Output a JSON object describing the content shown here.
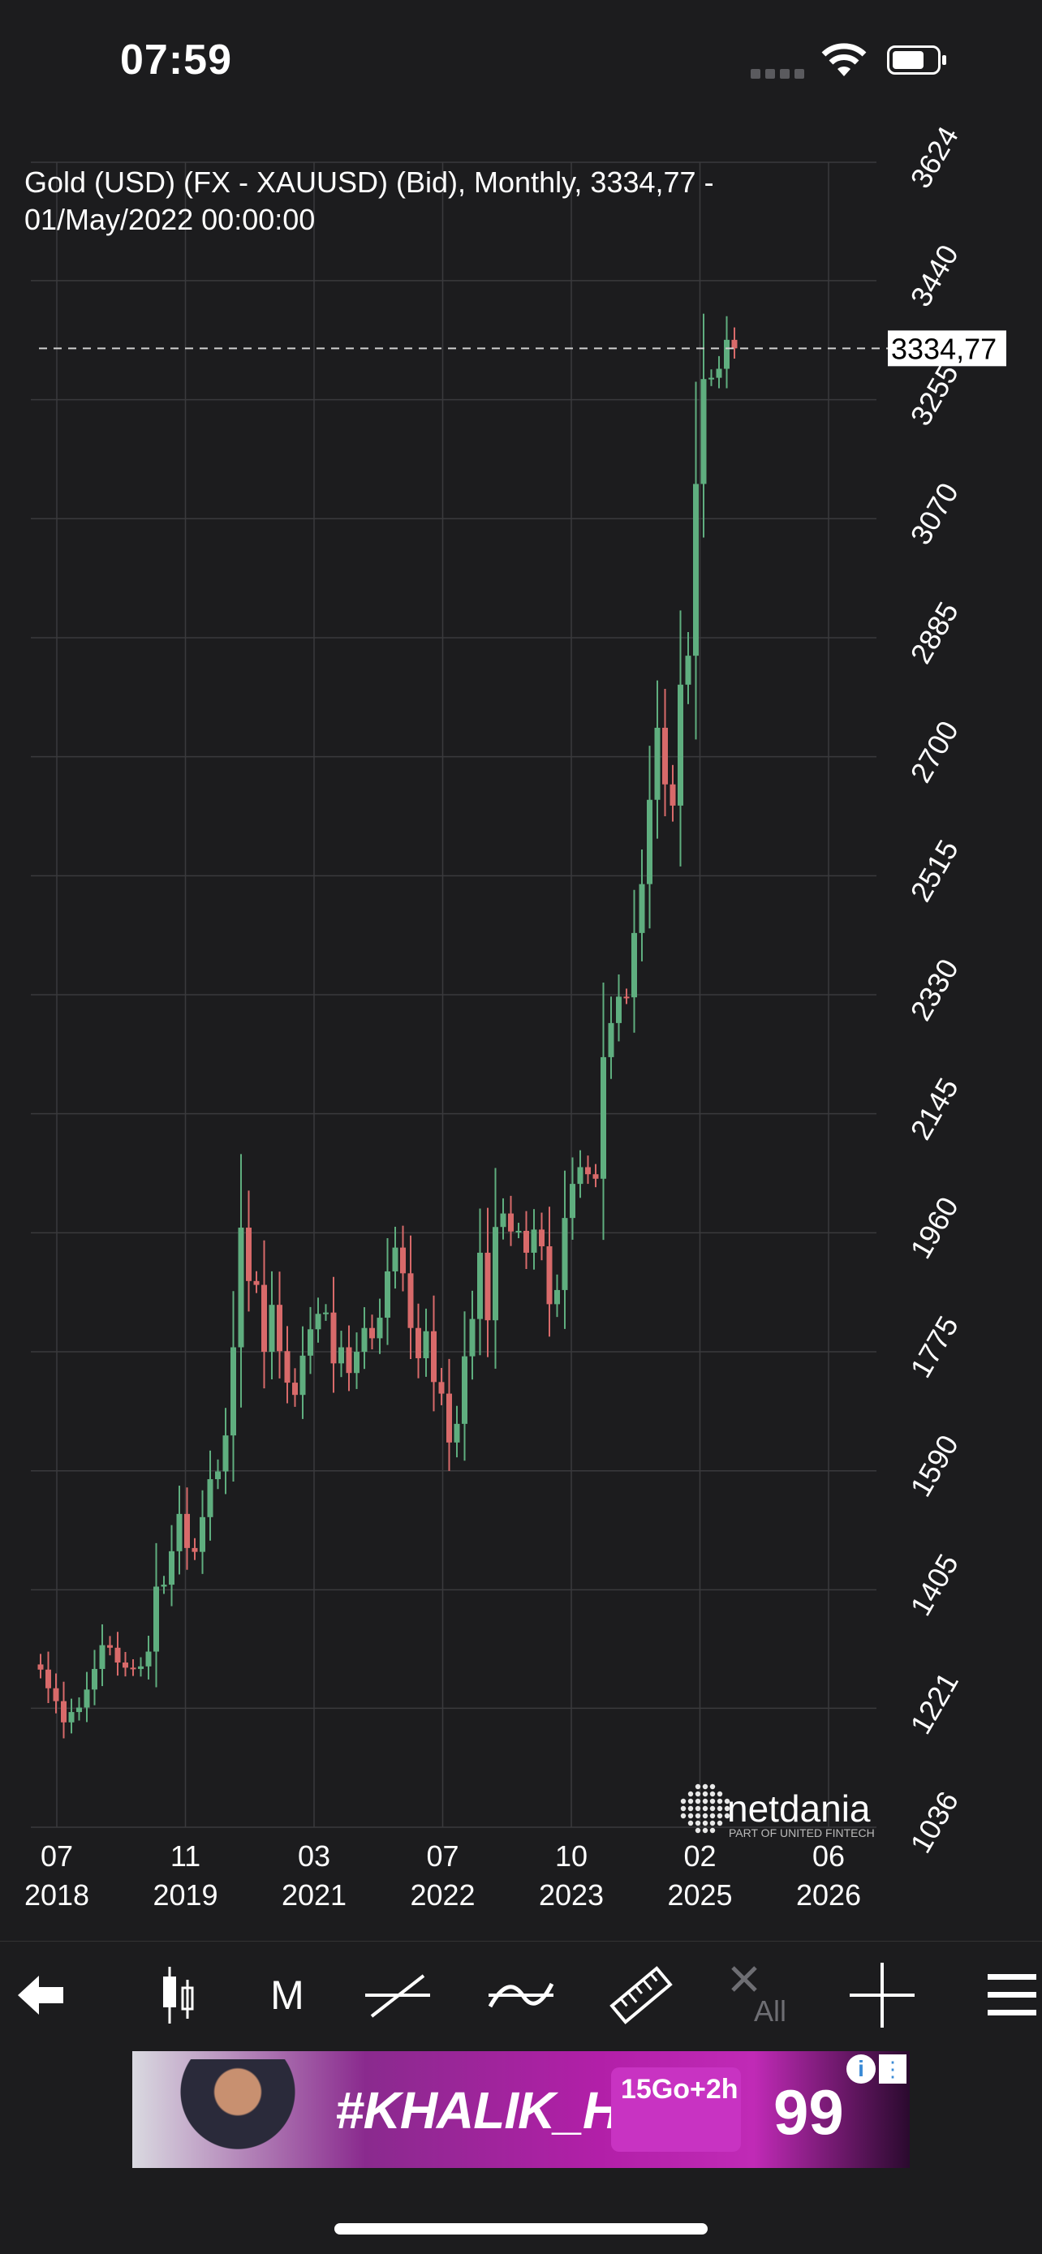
{
  "status_bar": {
    "time": "07:59"
  },
  "chart_data": {
    "type": "candlestick",
    "title": "Gold (USD) (FX - XAUUSD) (Bid), Monthly, 3334,77 - 01/May/2022 00:00:00",
    "ylim": [
      1036,
      3624
    ],
    "y_ticks": [
      "3624",
      "3440",
      "3255",
      "3070",
      "2885",
      "2700",
      "2515",
      "2330",
      "2145",
      "1960",
      "1775",
      "1590",
      "1405",
      "1221",
      "1036"
    ],
    "x_ticks": [
      {
        "month": "07",
        "year": "2018"
      },
      {
        "month": "11",
        "year": "2019"
      },
      {
        "month": "03",
        "year": "2021"
      },
      {
        "month": "07",
        "year": "2022"
      },
      {
        "month": "10",
        "year": "2023"
      },
      {
        "month": "02",
        "year": "2025"
      },
      {
        "month": "06",
        "year": "2026"
      }
    ],
    "current_price": 3334.77,
    "current_price_label": "3334,77",
    "up_color": "#5fae7f",
    "down_color": "#d86a6a",
    "closes": [
      1281,
      1252,
      1232,
      1199,
      1215,
      1222,
      1250,
      1282,
      1319,
      1315,
      1292,
      1284,
      1282,
      1286,
      1309,
      1410,
      1413,
      1465,
      1523,
      1470,
      1464,
      1518,
      1577,
      1589,
      1645,
      1782,
      1968,
      1885,
      1879,
      1775,
      1848,
      1776,
      1727,
      1708,
      1769,
      1810,
      1834,
      1836,
      1757,
      1782,
      1742,
      1775,
      1812,
      1796,
      1828,
      1900,
      1937,
      1897,
      1812,
      1765,
      1807,
      1728,
      1710,
      1634,
      1663,
      1768,
      1826,
      1929,
      1824,
      1969,
      1990,
      1962,
      1963,
      1929,
      1965,
      1939,
      1849,
      1871,
      1983,
      2036,
      2062,
      2051,
      2044,
      2233,
      2286,
      2327,
      2326,
      2426,
      2502,
      2633,
      2745,
      2657,
      2624,
      2812,
      2857,
      3124,
      3287,
      3289,
      3303,
      3348,
      3334.77
    ],
    "logo_text": "netdania",
    "logo_sub": "PART OF UNITED FINTECH"
  },
  "toolbar": {
    "back_label": "back",
    "candles_label": "candles",
    "period_label": "M",
    "all_label": "All"
  },
  "ad": {
    "hashtag": "#KHALIK_HANI",
    "price": "99",
    "offer": "15Go+2h",
    "info": "i",
    "menu": "⋮"
  }
}
